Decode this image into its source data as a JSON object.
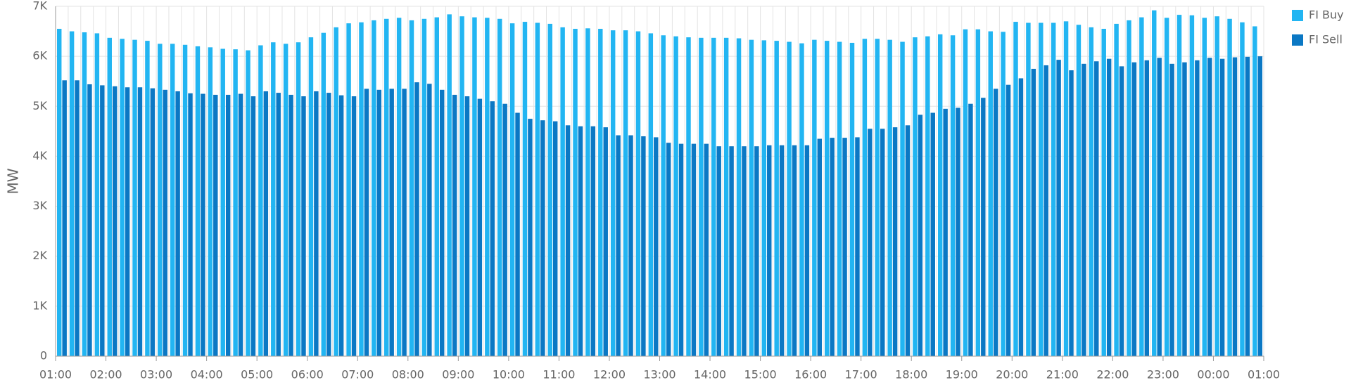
{
  "chart_data": {
    "type": "bar",
    "y_label": "MW",
    "x": [
      0,
      0.25,
      0.5,
      0.75,
      1,
      1.25,
      1.5,
      1.75,
      2,
      2.25,
      2.5,
      2.75,
      3,
      3.25,
      3.5,
      3.75,
      4,
      4.25,
      4.5,
      4.75,
      5,
      5.25,
      5.5,
      5.75,
      6,
      6.25,
      6.5,
      6.75,
      7,
      7.25,
      7.5,
      7.75,
      8,
      8.25,
      8.5,
      8.75,
      9,
      9.25,
      9.5,
      9.75,
      10,
      10.25,
      10.5,
      10.75,
      11,
      11.25,
      11.5,
      11.75,
      12,
      12.25,
      12.5,
      12.75,
      13,
      13.25,
      13.5,
      13.75,
      14,
      14.25,
      14.5,
      14.75,
      15,
      15.25,
      15.5,
      15.75,
      16,
      16.25,
      16.5,
      16.75,
      17,
      17.25,
      17.5,
      17.75,
      18,
      18.25,
      18.5,
      18.75,
      19,
      19.25,
      19.5,
      19.75,
      20,
      20.25,
      20.5,
      20.75,
      21,
      21.25,
      21.5,
      21.75,
      22,
      22.25,
      22.5,
      22.75,
      23,
      23.25,
      23.5,
      23.75
    ],
    "xlim": [
      0,
      24
    ],
    "xticks": [
      {
        "value": 0,
        "label": "01:00"
      },
      {
        "value": 1,
        "label": "02:00"
      },
      {
        "value": 2,
        "label": "03:00"
      },
      {
        "value": 3,
        "label": "04:00"
      },
      {
        "value": 4,
        "label": "05:00"
      },
      {
        "value": 5,
        "label": "06:00"
      },
      {
        "value": 6,
        "label": "07:00"
      },
      {
        "value": 7,
        "label": "08:00"
      },
      {
        "value": 8,
        "label": "09:00"
      },
      {
        "value": 9,
        "label": "10:00"
      },
      {
        "value": 10,
        "label": "11:00"
      },
      {
        "value": 11,
        "label": "12:00"
      },
      {
        "value": 12,
        "label": "13:00"
      },
      {
        "value": 13,
        "label": "14:00"
      },
      {
        "value": 14,
        "label": "15:00"
      },
      {
        "value": 15,
        "label": "16:00"
      },
      {
        "value": 16,
        "label": "17:00"
      },
      {
        "value": 17,
        "label": "18:00"
      },
      {
        "value": 18,
        "label": "19:00"
      },
      {
        "value": 19,
        "label": "20:00"
      },
      {
        "value": 20,
        "label": "21:00"
      },
      {
        "value": 21,
        "label": "22:00"
      },
      {
        "value": 22,
        "label": "23:00"
      },
      {
        "value": 23,
        "label": "00:00"
      },
      {
        "value": 24,
        "label": "01:00"
      }
    ],
    "ylim": [
      0,
      7000
    ],
    "yticks": [
      0,
      {
        "value": 1000,
        "label": "1K"
      },
      {
        "value": 2000,
        "label": "2K"
      },
      {
        "value": 3000,
        "label": "3K"
      },
      {
        "value": 4000,
        "label": "4K"
      },
      {
        "value": 5000,
        "label": "5K"
      },
      {
        "value": 6000,
        "label": "6K"
      },
      {
        "value": 7000,
        "label": "7K"
      }
    ],
    "grid": true,
    "legend": "top-right",
    "series": [
      {
        "name": "FI Buy",
        "color": "#22b5f2",
        "values": [
          6550,
          6500,
          6480,
          6460,
          6370,
          6350,
          6330,
          6310,
          6250,
          6250,
          6230,
          6200,
          6180,
          6150,
          6140,
          6120,
          6220,
          6280,
          6250,
          6280,
          6380,
          6470,
          6580,
          6660,
          6680,
          6720,
          6750,
          6770,
          6720,
          6750,
          6780,
          6840,
          6800,
          6780,
          6770,
          6750,
          6660,
          6690,
          6670,
          6650,
          6580,
          6550,
          6560,
          6550,
          6520,
          6520,
          6500,
          6460,
          6420,
          6400,
          6380,
          6370,
          6370,
          6370,
          6360,
          6330,
          6320,
          6310,
          6290,
          6260,
          6330,
          6310,
          6290,
          6270,
          6350,
          6350,
          6330,
          6290,
          6380,
          6400,
          6440,
          6420,
          6540,
          6540,
          6500,
          6490,
          6690,
          6670,
          6670,
          6670,
          6700,
          6630,
          6580,
          6550,
          6650,
          6720,
          6780,
          6920,
          6770,
          6830,
          6820,
          6770,
          6800,
          6750,
          6680,
          6600
        ]
      },
      {
        "name": "FI Sell",
        "color": "#0b78c4",
        "values": [
          5520,
          5520,
          5440,
          5420,
          5400,
          5380,
          5380,
          5360,
          5330,
          5300,
          5260,
          5250,
          5230,
          5230,
          5250,
          5200,
          5300,
          5270,
          5230,
          5200,
          5300,
          5270,
          5220,
          5200,
          5350,
          5330,
          5350,
          5350,
          5480,
          5450,
          5330,
          5230,
          5200,
          5150,
          5100,
          5050,
          4870,
          4750,
          4720,
          4700,
          4620,
          4600,
          4600,
          4580,
          4420,
          4420,
          4400,
          4380,
          4270,
          4250,
          4250,
          4250,
          4200,
          4200,
          4200,
          4200,
          4220,
          4220,
          4220,
          4220,
          4350,
          4370,
          4370,
          4380,
          4550,
          4550,
          4580,
          4620,
          4830,
          4870,
          4950,
          4970,
          5050,
          5170,
          5350,
          5430,
          5560,
          5750,
          5820,
          5930,
          5720,
          5850,
          5900,
          5950,
          5800,
          5880,
          5920,
          5970,
          5850,
          5880,
          5920,
          5970,
          5950,
          5980,
          5990,
          6000
        ]
      }
    ]
  }
}
